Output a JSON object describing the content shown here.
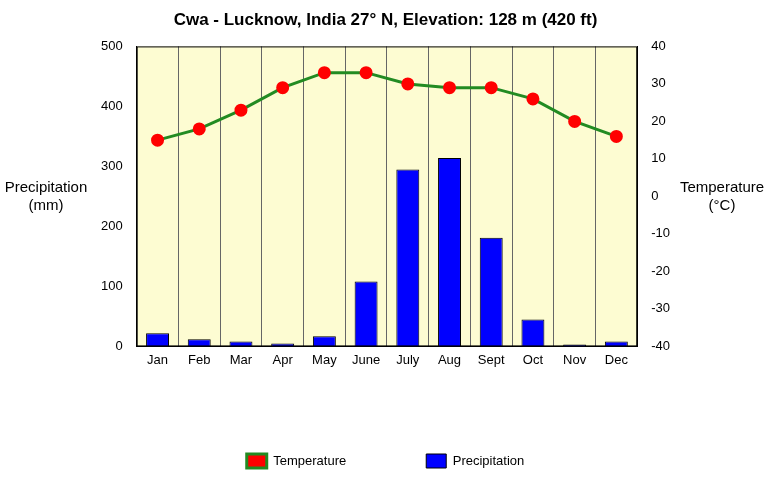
{
  "chart_data": {
    "type": "bar",
    "title": "Cwa - Lucknow, India 27° N, Elevation: 128 m (420 ft)",
    "categories": [
      "Jan",
      "Feb",
      "Mar",
      "Apr",
      "May",
      "June",
      "July",
      "Aug",
      "Sept",
      "Oct",
      "Nov",
      "Dec"
    ],
    "series": [
      {
        "name": "Temperature",
        "type": "line",
        "axis": "y2",
        "color": "#228b22",
        "marker": "circle",
        "values": [
          15,
          18,
          23,
          29,
          33,
          33,
          30,
          29,
          29,
          26,
          20,
          16
        ]
      },
      {
        "name": "Precipitation",
        "type": "bar",
        "color": "#0000ff",
        "values": [
          22,
          12,
          8,
          5,
          17,
          108,
          295,
          314,
          181,
          45,
          3,
          8
        ]
      }
    ],
    "ylabel": [
      "Precipitation",
      "(mm)"
    ],
    "y2label": [
      "Temperature",
      "(°C)"
    ],
    "ylim": [
      0,
      500
    ],
    "yticks": [
      0,
      100,
      200,
      300,
      400,
      500
    ],
    "y2lim": [
      -40,
      40
    ],
    "y2ticks": [
      -40,
      -30,
      -20,
      -10,
      0,
      10,
      20,
      30,
      40
    ],
    "grid": true,
    "legend": "bottom"
  }
}
